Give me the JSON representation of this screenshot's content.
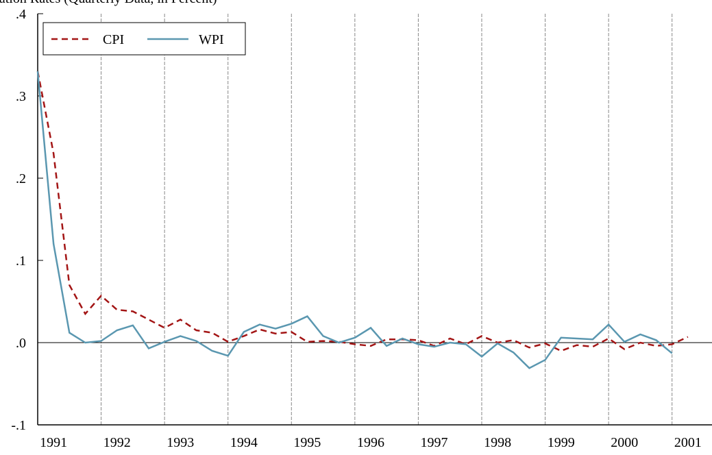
{
  "chart_data": {
    "type": "line",
    "title": "Inflation Rates (Quarterly Data, in Percent)",
    "x": [
      1991,
      1991.25,
      1991.5,
      1991.75,
      1992,
      1992.25,
      1992.5,
      1992.75,
      1993,
      1993.25,
      1993.5,
      1993.75,
      1994,
      1994.25,
      1994.5,
      1994.75,
      1995,
      1995.25,
      1995.5,
      1995.75,
      1996,
      1996.25,
      1996.5,
      1996.75,
      1997,
      1997.25,
      1997.5,
      1997.75,
      1998,
      1998.25,
      1998.5,
      1998.75,
      1999,
      1999.25,
      1999.5,
      1999.75,
      2000,
      2000.25,
      2000.5,
      2000.75,
      2001,
      2001.25
    ],
    "series": [
      {
        "name": "CPI",
        "color": "#a31515",
        "dash": true,
        "values": [
          0.33,
          0.23,
          0.07,
          0.035,
          0.057,
          0.04,
          0.038,
          0.028,
          0.018,
          0.028,
          0.015,
          0.012,
          0.001,
          0.008,
          0.016,
          0.011,
          0.013,
          0.001,
          0.002,
          0.001,
          -0.002,
          -0.004,
          0.004,
          0.004,
          0.003,
          -0.004,
          0.005,
          -0.002,
          0.008,
          0.0,
          0.003,
          -0.006,
          -0.001,
          -0.01,
          -0.003,
          -0.005,
          0.005,
          -0.008,
          0.0,
          -0.004,
          -0.002,
          0.007
        ]
      },
      {
        "name": "WPI",
        "color": "#5a97b0",
        "dash": false,
        "values": [
          0.33,
          0.12,
          0.012,
          0.0,
          0.002,
          0.015,
          0.021,
          -0.007,
          0.001,
          0.008,
          0.002,
          -0.01,
          -0.016,
          0.013,
          0.022,
          0.017,
          0.023,
          0.032,
          0.008,
          0.0,
          0.006,
          0.018,
          -0.004,
          0.005,
          -0.002,
          -0.005,
          0.0,
          -0.002,
          -0.017,
          -0.001,
          -0.012,
          -0.031,
          -0.021,
          0.006,
          0.005,
          0.004,
          0.022,
          0.001,
          0.01,
          0.003,
          -0.013,
          null
        ]
      }
    ],
    "xlim": [
      1991,
      2001.63
    ],
    "xticks": [
      1991,
      1992,
      1993,
      1994,
      1995,
      1996,
      1997,
      1998,
      1999,
      2000,
      2001
    ],
    "ylim": [
      -0.1,
      0.4
    ],
    "yticks": [
      {
        "value": -0.1,
        "label": "-.1"
      },
      {
        "value": 0,
        "label": ".0"
      },
      {
        "value": 0.1,
        "label": ".1"
      },
      {
        "value": 0.2,
        "label": ".2"
      },
      {
        "value": 0.3,
        "label": ".3"
      },
      {
        "value": 0.4,
        "label": ".4"
      }
    ],
    "grid": true,
    "zero_line": true,
    "legend": "upper left"
  }
}
